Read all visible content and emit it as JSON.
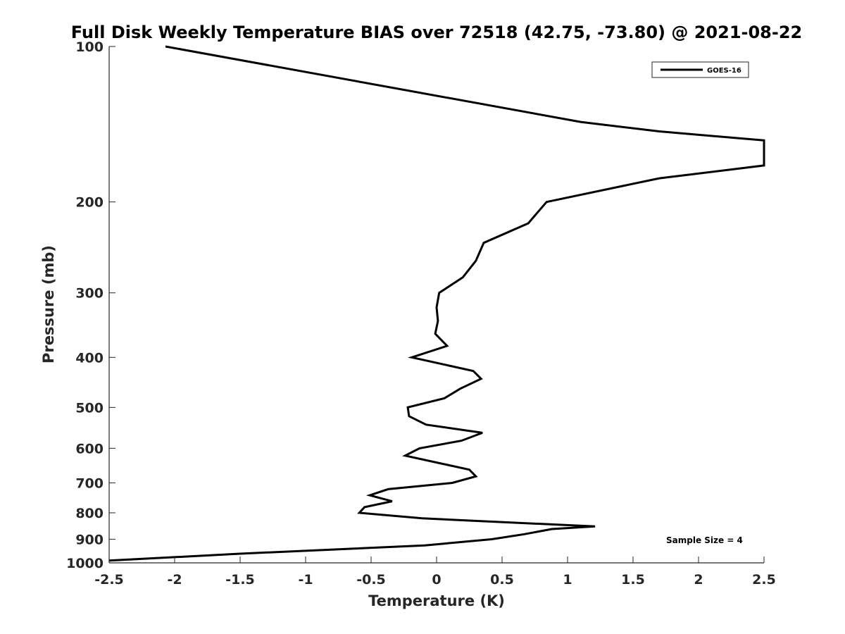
{
  "chart_data": {
    "type": "line",
    "title": "Full Disk Weekly Temperature BIAS over 72518 (42.75, -73.80) @ 2021-08-22",
    "xlabel": "Temperature (K)",
    "ylabel": "Pressure (mb)",
    "xlim": [
      -2.5,
      2.5
    ],
    "ylim": [
      100,
      1000
    ],
    "yscale": "log",
    "yreversed": true,
    "grid": false,
    "legend_position": "top-right",
    "xticks": [
      -2.5,
      -2,
      -1.5,
      -1,
      -0.5,
      0,
      0.5,
      1,
      1.5,
      2,
      2.5
    ],
    "xtick_labels": [
      "-2.5",
      "-2",
      "-1.5",
      "-1",
      "-0.5",
      "0",
      "0.5",
      "1",
      "1.5",
      "2",
      "2.5"
    ],
    "yticks": [
      100,
      200,
      300,
      400,
      500,
      600,
      700,
      800,
      900,
      1000
    ],
    "ytick_labels": [
      "100",
      "200",
      "300",
      "400",
      "500",
      "600",
      "700",
      "800",
      "900",
      "1000"
    ],
    "series": [
      {
        "name": "GOES-16",
        "color": "#000000",
        "points": [
          {
            "x": -2.07,
            "y": 100
          },
          {
            "x": 1.1,
            "y": 140
          },
          {
            "x": 1.7,
            "y": 146
          },
          {
            "x": 2.5,
            "y": 152
          },
          {
            "x": 2.5,
            "y": 170
          },
          {
            "x": 1.7,
            "y": 180
          },
          {
            "x": 0.84,
            "y": 200
          },
          {
            "x": 0.7,
            "y": 220
          },
          {
            "x": 0.36,
            "y": 240
          },
          {
            "x": 0.3,
            "y": 260
          },
          {
            "x": 0.2,
            "y": 280
          },
          {
            "x": 0.02,
            "y": 300
          },
          {
            "x": 0.0,
            "y": 320
          },
          {
            "x": 0.01,
            "y": 340
          },
          {
            "x": -0.01,
            "y": 360
          },
          {
            "x": 0.08,
            "y": 380
          },
          {
            "x": -0.19,
            "y": 400
          },
          {
            "x": 0.28,
            "y": 425
          },
          {
            "x": 0.34,
            "y": 440
          },
          {
            "x": 0.18,
            "y": 460
          },
          {
            "x": 0.06,
            "y": 480
          },
          {
            "x": -0.22,
            "y": 500
          },
          {
            "x": -0.21,
            "y": 520
          },
          {
            "x": -0.08,
            "y": 540
          },
          {
            "x": 0.35,
            "y": 560
          },
          {
            "x": 0.19,
            "y": 580
          },
          {
            "x": -0.13,
            "y": 600
          },
          {
            "x": -0.24,
            "y": 620
          },
          {
            "x": 0.25,
            "y": 660
          },
          {
            "x": 0.3,
            "y": 680
          },
          {
            "x": 0.12,
            "y": 700
          },
          {
            "x": -0.37,
            "y": 720
          },
          {
            "x": -0.51,
            "y": 740
          },
          {
            "x": -0.34,
            "y": 760
          },
          {
            "x": -0.55,
            "y": 780
          },
          {
            "x": -0.59,
            "y": 800
          },
          {
            "x": -0.11,
            "y": 820
          },
          {
            "x": 1.21,
            "y": 850
          },
          {
            "x": 0.88,
            "y": 860
          },
          {
            "x": 0.67,
            "y": 880
          },
          {
            "x": 0.42,
            "y": 900
          },
          {
            "x": -0.09,
            "y": 925
          },
          {
            "x": -1.5,
            "y": 960
          },
          {
            "x": -2.5,
            "y": 990
          }
        ]
      }
    ],
    "annotations": [
      "Sample Size = 4"
    ]
  }
}
